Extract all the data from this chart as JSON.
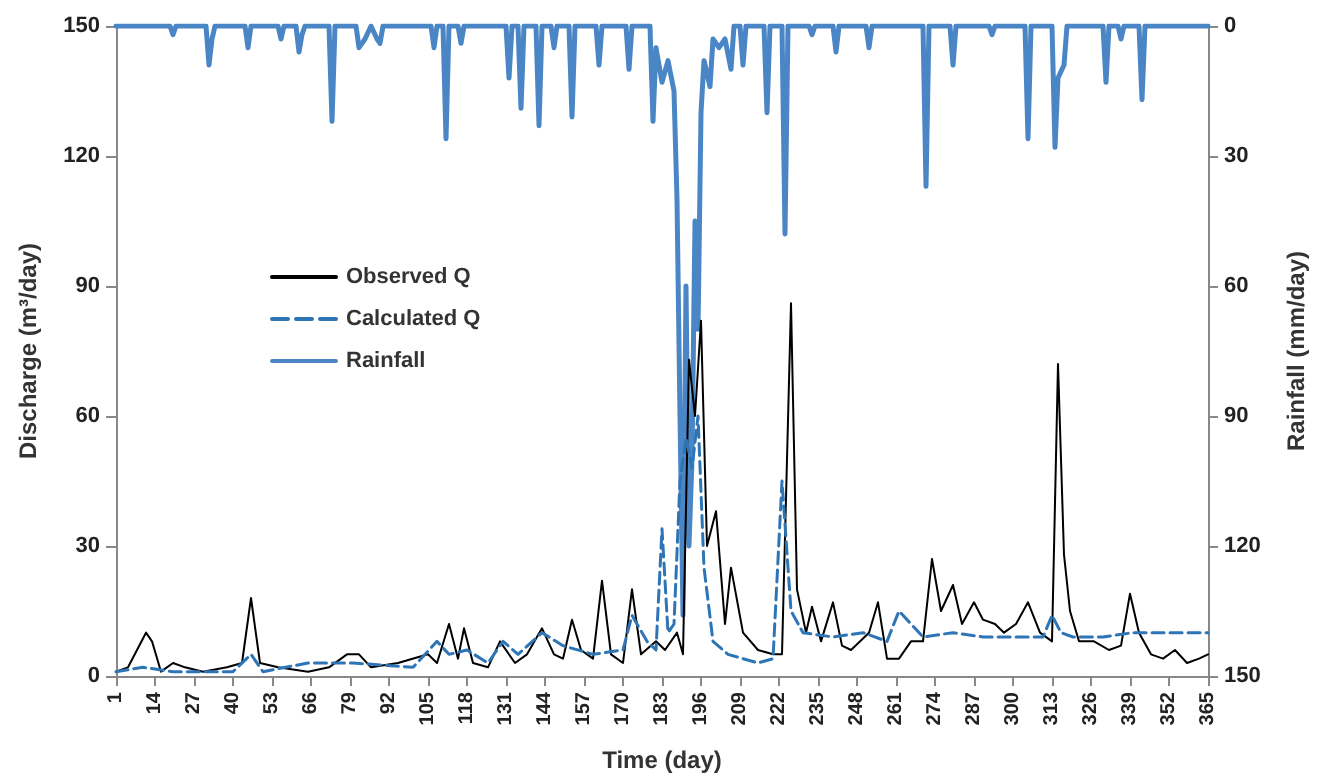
{
  "chart_data": {
    "type": "line",
    "xlabel": "Time (day)",
    "ylabel": "Discharge (m³/day)",
    "y2label": "Rainfall (mm/day)",
    "xlim": [
      1,
      365
    ],
    "xticks": [
      1,
      14,
      27,
      40,
      53,
      66,
      79,
      92,
      105,
      118,
      131,
      144,
      157,
      170,
      183,
      196,
      209,
      222,
      235,
      248,
      261,
      274,
      287,
      300,
      313,
      326,
      339,
      352,
      365
    ],
    "ylim": [
      0,
      150
    ],
    "yticks": [
      0,
      30,
      60,
      90,
      120,
      150
    ],
    "y2lim": [
      150,
      0
    ],
    "y2ticks": [
      0,
      30,
      60,
      90,
      120,
      150
    ],
    "legend": "left",
    "grid": false,
    "marker": "none",
    "series": [
      {
        "name": "Observed Q",
        "color": "#000000",
        "line_style": "solid",
        "x": [
          1,
          5,
          8,
          11,
          13,
          16,
          20,
          24,
          30,
          38,
          43,
          46,
          49,
          55,
          65,
          72,
          78,
          82,
          86,
          95,
          105,
          108,
          112,
          115,
          117,
          120,
          125,
          129,
          134,
          138,
          143,
          147,
          150,
          153,
          156,
          160,
          163,
          166,
          170,
          173,
          176,
          181,
          184,
          188,
          190,
          192,
          194,
          196,
          198,
          201,
          204,
          206,
          210,
          215,
          220,
          223,
          226,
          228,
          231,
          233,
          236,
          240,
          243,
          246,
          252,
          255,
          258,
          262,
          266,
          270,
          273,
          276,
          280,
          283,
          287,
          290,
          294,
          297,
          301,
          305,
          309,
          313,
          315,
          317,
          319,
          322,
          327,
          332,
          336,
          339,
          342,
          346,
          350,
          354,
          358,
          362,
          365
        ],
        "values": [
          1,
          2,
          6,
          10,
          8,
          1,
          3,
          2,
          1,
          2,
          3,
          18,
          3,
          2,
          1,
          2,
          5,
          5,
          2,
          3,
          5,
          3,
          12,
          4,
          11,
          3,
          2,
          8,
          3,
          5,
          11,
          5,
          4,
          13,
          6,
          4,
          22,
          5,
          3,
          20,
          5,
          8,
          6,
          10,
          5,
          73,
          60,
          82,
          30,
          38,
          12,
          25,
          10,
          6,
          5,
          5,
          86,
          20,
          10,
          16,
          8,
          17,
          7,
          6,
          10,
          17,
          4,
          4,
          8,
          8,
          27,
          15,
          21,
          12,
          17,
          13,
          12,
          10,
          12,
          17,
          10,
          8,
          72,
          28,
          15,
          8,
          8,
          6,
          7,
          19,
          10,
          5,
          4,
          6,
          3,
          4,
          5
        ]
      },
      {
        "name": "Calculated Q",
        "color": "#2e75b6",
        "line_style": "dashed",
        "x": [
          1,
          10,
          20,
          40,
          46,
          50,
          65,
          80,
          100,
          108,
          112,
          118,
          125,
          130,
          135,
          143,
          150,
          160,
          170,
          173,
          178,
          181,
          183,
          185,
          187,
          189,
          191,
          193,
          195,
          197,
          200,
          205,
          210,
          215,
          220,
          223,
          226,
          230,
          240,
          250,
          258,
          262,
          270,
          280,
          290,
          300,
          310,
          313,
          316,
          320,
          330,
          340,
          350,
          365
        ],
        "values": [
          1,
          2,
          1,
          1,
          5,
          1,
          3,
          3,
          2,
          8,
          5,
          6,
          3,
          8,
          5,
          10,
          7,
          5,
          6,
          14,
          8,
          6,
          34,
          10,
          12,
          45,
          55,
          48,
          60,
          25,
          8,
          5,
          4,
          3,
          4,
          45,
          15,
          10,
          9,
          10,
          8,
          15,
          9,
          10,
          9,
          9,
          9,
          14,
          10,
          9,
          9,
          10,
          10,
          10
        ]
      },
      {
        "name": "Rainfall",
        "color": "#4a86c5",
        "line_style": "solid",
        "axis": "y2",
        "x": [
          1,
          19,
          20,
          21,
          31,
          32,
          33,
          34,
          44,
          45,
          46,
          55,
          56,
          57,
          61,
          62,
          63,
          64,
          72,
          73,
          74,
          81,
          82,
          84,
          86,
          88,
          89,
          90,
          106,
          107,
          108,
          110,
          111,
          112,
          115,
          116,
          117,
          131,
          132,
          133,
          135,
          136,
          137,
          141,
          142,
          143,
          146,
          147,
          148,
          152,
          153,
          154,
          161,
          162,
          163,
          171,
          172,
          173,
          179,
          180,
          181,
          183,
          185,
          187,
          188,
          189,
          190,
          191,
          192,
          193,
          194,
          195,
          196,
          197,
          199,
          200,
          202,
          204,
          206,
          207,
          209,
          210,
          211,
          217,
          218,
          219,
          223,
          224,
          225,
          232,
          233,
          234,
          240,
          241,
          242,
          251,
          252,
          253,
          270,
          271,
          272,
          279,
          280,
          281,
          292,
          293,
          294,
          304,
          305,
          306,
          313,
          314,
          315,
          317,
          318,
          330,
          331,
          332,
          335,
          336,
          337,
          342,
          343,
          344,
          365
        ],
        "values": [
          0,
          0,
          2,
          0,
          0,
          9,
          3,
          0,
          0,
          5,
          0,
          0,
          3,
          0,
          0,
          6,
          2,
          0,
          0,
          22,
          0,
          0,
          5,
          3,
          0,
          3,
          4,
          0,
          0,
          5,
          0,
          0,
          26,
          0,
          0,
          4,
          0,
          0,
          12,
          0,
          0,
          19,
          0,
          0,
          23,
          0,
          0,
          5,
          0,
          0,
          21,
          0,
          0,
          9,
          0,
          0,
          10,
          0,
          0,
          22,
          5,
          13,
          8,
          15,
          40,
          90,
          136,
          60,
          120,
          100,
          45,
          70,
          20,
          8,
          14,
          3,
          5,
          3,
          10,
          0,
          0,
          9,
          0,
          0,
          20,
          0,
          0,
          48,
          0,
          0,
          2,
          0,
          0,
          6,
          0,
          0,
          5,
          0,
          0,
          37,
          0,
          0,
          9,
          0,
          0,
          2,
          0,
          0,
          26,
          0,
          0,
          28,
          12,
          9,
          0,
          0,
          13,
          0,
          0,
          3,
          0,
          0,
          17,
          0,
          0
        ]
      }
    ]
  }
}
